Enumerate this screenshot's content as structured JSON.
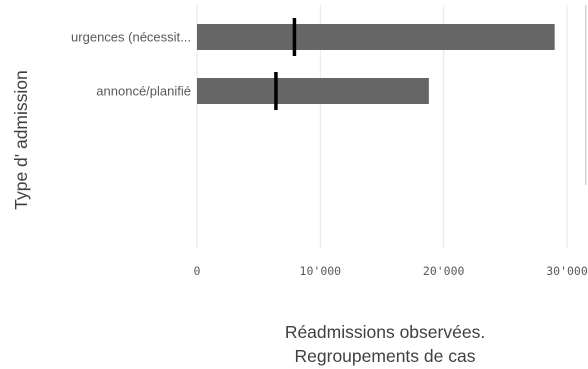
{
  "chart_data": {
    "type": "bar",
    "orientation": "horizontal",
    "categories": [
      "urgences (nécessit...",
      "annoncé/planifié"
    ],
    "series": [
      {
        "values": [
          29000,
          18800
        ],
        "color": "#666666"
      }
    ],
    "markers": [
      7900,
      6400
    ],
    "xlabel_lines": [
      "Réadmissions observées.",
      "Regroupements de cas"
    ],
    "ylabel": "Type d' admission",
    "xlim": [
      0,
      30000
    ],
    "xticks": [
      0,
      10000,
      20000,
      30000
    ],
    "xtick_labels": [
      "0",
      "10'000",
      "20'000",
      "30'000"
    ],
    "grid": true,
    "legend": "none"
  }
}
